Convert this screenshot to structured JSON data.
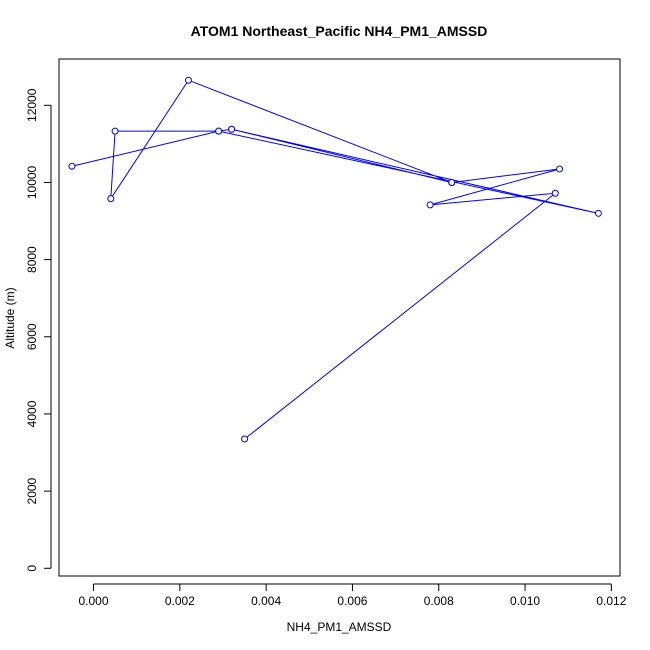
{
  "chart_data": {
    "type": "line",
    "title": "ATOM1 Northeast_Pacific NH4_PM1_AMSSD",
    "xlabel": "NH4_PM1_AMSSD",
    "ylabel": "Altitude (m)",
    "xlim": [
      -0.0008,
      0.0122
    ],
    "ylim": [
      -200,
      13200
    ],
    "xticks": [
      0.0,
      0.002,
      0.004,
      0.006,
      0.008,
      0.01,
      0.012
    ],
    "xtick_labels": [
      "0.000",
      "0.002",
      "0.004",
      "0.006",
      "0.008",
      "0.010",
      "0.012"
    ],
    "yticks": [
      0,
      2000,
      4000,
      6000,
      8000,
      10000,
      12000
    ],
    "ytick_labels": [
      "0",
      "2000",
      "4000",
      "6000",
      "8000",
      "10000",
      "12000"
    ],
    "grid": false,
    "series": [
      {
        "color": "#0000ff",
        "marker": "open-circle",
        "points": [
          {
            "x": 0.0035,
            "y": 3350
          },
          {
            "x": 0.0107,
            "y": 9720
          },
          {
            "x": 0.0078,
            "y": 9420
          },
          {
            "x": 0.0108,
            "y": 10350
          },
          {
            "x": 0.0083,
            "y": 10000
          },
          {
            "x": 0.0032,
            "y": 11380
          },
          {
            "x": 0.0117,
            "y": 9200
          },
          {
            "x": 0.0029,
            "y": 11330
          },
          {
            "x": 0.0005,
            "y": 11330
          },
          {
            "x": 0.0004,
            "y": 9580
          },
          {
            "x": 0.0022,
            "y": 12650
          },
          {
            "x": 0.0083,
            "y": 10000
          },
          {
            "x": 0.0032,
            "y": 11380
          },
          {
            "x": 0.0029,
            "y": 11330
          },
          {
            "x": -0.0005,
            "y": 10420
          }
        ]
      }
    ]
  }
}
